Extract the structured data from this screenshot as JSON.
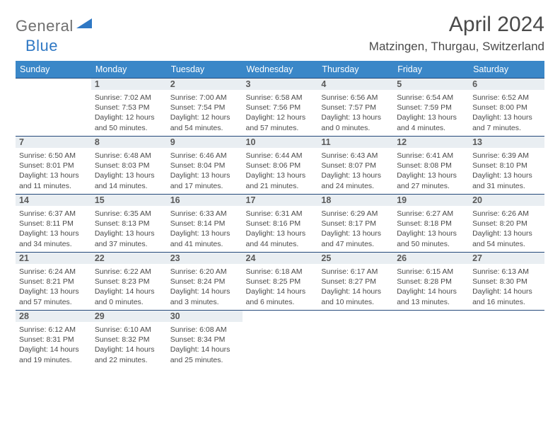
{
  "brand": {
    "part1": "General",
    "part2": "Blue"
  },
  "title": "April 2024",
  "location": "Matzingen, Thurgau, Switzerland",
  "colors": {
    "header_bg": "#3a87c8",
    "header_text": "#ffffff",
    "row_band": "#e9eef2",
    "row_band_border": "#254a7a",
    "text": "#4a4a4a",
    "logo_gray": "#6f6f6f",
    "logo_blue": "#2f78c4"
  },
  "typography": {
    "month_title_fontsize": 30,
    "location_fontsize": 17,
    "weekday_fontsize": 12.5,
    "info_fontsize": 10.5
  },
  "weekdays": [
    "Sunday",
    "Monday",
    "Tuesday",
    "Wednesday",
    "Thursday",
    "Friday",
    "Saturday"
  ],
  "start_weekday_index": 1,
  "days": [
    {
      "n": 1,
      "sunrise": "7:02 AM",
      "sunset": "7:53 PM",
      "daylight": "12 hours and 50 minutes."
    },
    {
      "n": 2,
      "sunrise": "7:00 AM",
      "sunset": "7:54 PM",
      "daylight": "12 hours and 54 minutes."
    },
    {
      "n": 3,
      "sunrise": "6:58 AM",
      "sunset": "7:56 PM",
      "daylight": "12 hours and 57 minutes."
    },
    {
      "n": 4,
      "sunrise": "6:56 AM",
      "sunset": "7:57 PM",
      "daylight": "13 hours and 0 minutes."
    },
    {
      "n": 5,
      "sunrise": "6:54 AM",
      "sunset": "7:59 PM",
      "daylight": "13 hours and 4 minutes."
    },
    {
      "n": 6,
      "sunrise": "6:52 AM",
      "sunset": "8:00 PM",
      "daylight": "13 hours and 7 minutes."
    },
    {
      "n": 7,
      "sunrise": "6:50 AM",
      "sunset": "8:01 PM",
      "daylight": "13 hours and 11 minutes."
    },
    {
      "n": 8,
      "sunrise": "6:48 AM",
      "sunset": "8:03 PM",
      "daylight": "13 hours and 14 minutes."
    },
    {
      "n": 9,
      "sunrise": "6:46 AM",
      "sunset": "8:04 PM",
      "daylight": "13 hours and 17 minutes."
    },
    {
      "n": 10,
      "sunrise": "6:44 AM",
      "sunset": "8:06 PM",
      "daylight": "13 hours and 21 minutes."
    },
    {
      "n": 11,
      "sunrise": "6:43 AM",
      "sunset": "8:07 PM",
      "daylight": "13 hours and 24 minutes."
    },
    {
      "n": 12,
      "sunrise": "6:41 AM",
      "sunset": "8:08 PM",
      "daylight": "13 hours and 27 minutes."
    },
    {
      "n": 13,
      "sunrise": "6:39 AM",
      "sunset": "8:10 PM",
      "daylight": "13 hours and 31 minutes."
    },
    {
      "n": 14,
      "sunrise": "6:37 AM",
      "sunset": "8:11 PM",
      "daylight": "13 hours and 34 minutes."
    },
    {
      "n": 15,
      "sunrise": "6:35 AM",
      "sunset": "8:13 PM",
      "daylight": "13 hours and 37 minutes."
    },
    {
      "n": 16,
      "sunrise": "6:33 AM",
      "sunset": "8:14 PM",
      "daylight": "13 hours and 41 minutes."
    },
    {
      "n": 17,
      "sunrise": "6:31 AM",
      "sunset": "8:16 PM",
      "daylight": "13 hours and 44 minutes."
    },
    {
      "n": 18,
      "sunrise": "6:29 AM",
      "sunset": "8:17 PM",
      "daylight": "13 hours and 47 minutes."
    },
    {
      "n": 19,
      "sunrise": "6:27 AM",
      "sunset": "8:18 PM",
      "daylight": "13 hours and 50 minutes."
    },
    {
      "n": 20,
      "sunrise": "6:26 AM",
      "sunset": "8:20 PM",
      "daylight": "13 hours and 54 minutes."
    },
    {
      "n": 21,
      "sunrise": "6:24 AM",
      "sunset": "8:21 PM",
      "daylight": "13 hours and 57 minutes."
    },
    {
      "n": 22,
      "sunrise": "6:22 AM",
      "sunset": "8:23 PM",
      "daylight": "14 hours and 0 minutes."
    },
    {
      "n": 23,
      "sunrise": "6:20 AM",
      "sunset": "8:24 PM",
      "daylight": "14 hours and 3 minutes."
    },
    {
      "n": 24,
      "sunrise": "6:18 AM",
      "sunset": "8:25 PM",
      "daylight": "14 hours and 6 minutes."
    },
    {
      "n": 25,
      "sunrise": "6:17 AM",
      "sunset": "8:27 PM",
      "daylight": "14 hours and 10 minutes."
    },
    {
      "n": 26,
      "sunrise": "6:15 AM",
      "sunset": "8:28 PM",
      "daylight": "14 hours and 13 minutes."
    },
    {
      "n": 27,
      "sunrise": "6:13 AM",
      "sunset": "8:30 PM",
      "daylight": "14 hours and 16 minutes."
    },
    {
      "n": 28,
      "sunrise": "6:12 AM",
      "sunset": "8:31 PM",
      "daylight": "14 hours and 19 minutes."
    },
    {
      "n": 29,
      "sunrise": "6:10 AM",
      "sunset": "8:32 PM",
      "daylight": "14 hours and 22 minutes."
    },
    {
      "n": 30,
      "sunrise": "6:08 AM",
      "sunset": "8:34 PM",
      "daylight": "14 hours and 25 minutes."
    }
  ],
  "labels": {
    "sunrise": "Sunrise:",
    "sunset": "Sunset:",
    "daylight": "Daylight:"
  }
}
